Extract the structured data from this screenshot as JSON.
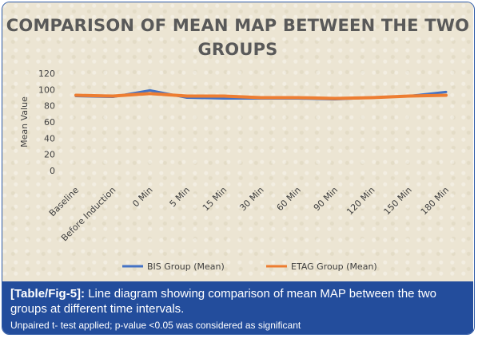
{
  "chart_data": {
    "type": "line",
    "title": "COMPARISON OF MEAN MAP BETWEEN THE TWO GROUPS",
    "xlabel": "",
    "ylabel": "Mean Value",
    "ylim": [
      0,
      120
    ],
    "yticks": [
      0,
      20,
      40,
      60,
      80,
      100,
      120
    ],
    "grid": false,
    "legend_position": "bottom",
    "categories": [
      "Baseline",
      "Before Induction",
      "0 Min",
      "5 Min",
      "15 Min",
      "30 Min",
      "60 Min",
      "90 Min",
      "120 Min",
      "150 Min",
      "180 Min"
    ],
    "series": [
      {
        "name": "BIS Group (Mean)",
        "color": "#4472c4",
        "values": [
          92,
          91,
          99,
          90,
          89,
          89,
          89,
          88,
          90,
          92,
          97
        ]
      },
      {
        "name": "ETAG Group (Mean)",
        "color": "#ed7d31",
        "values": [
          93,
          92,
          95,
          92,
          92,
          90,
          90,
          89,
          90,
          92,
          93
        ]
      }
    ]
  },
  "caption": {
    "ref": "[Table/Fig-5]:",
    "text": " Line diagram showing comparison of mean MAP between the two groups at different time intervals.",
    "note": "Unpaired t- test applied; p-value <0.05 was considered as significant"
  }
}
